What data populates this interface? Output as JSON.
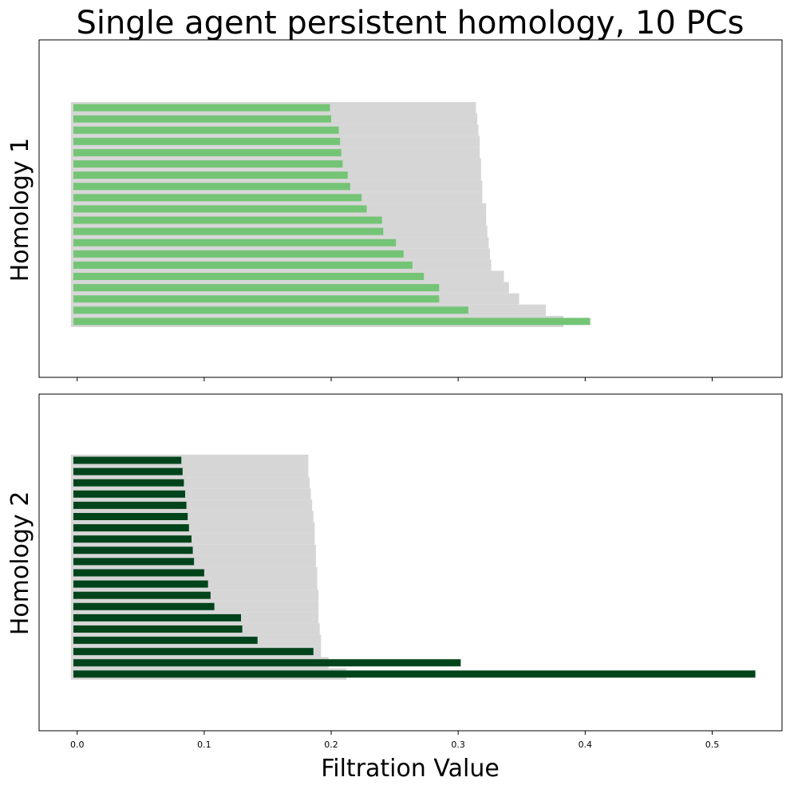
{
  "title": "Single agent persistent homology, 10 PCs",
  "xlabel": "Filtration Value",
  "colors": {
    "background_bar": "#d6d6d6",
    "homology1_bar": "#74c476",
    "homology2_bar": "#00441b",
    "axes": "#000000"
  },
  "chart_data": [
    {
      "type": "bar",
      "orientation": "horizontal",
      "ylabel": "Homology 1",
      "xlim": [
        -0.03,
        0.555
      ],
      "xticks": [
        0.0,
        0.1,
        0.2,
        0.3,
        0.4,
        0.5
      ],
      "xtick_labels_visible": false,
      "series": [
        {
          "role": "background",
          "values": [
            0.314,
            0.315,
            0.316,
            0.317,
            0.317,
            0.318,
            0.318,
            0.319,
            0.319,
            0.322,
            0.322,
            0.323,
            0.324,
            0.325,
            0.326,
            0.336,
            0.34,
            0.348,
            0.369,
            0.383
          ]
        },
        {
          "role": "foreground",
          "values": [
            0.199,
            0.2,
            0.206,
            0.207,
            0.208,
            0.209,
            0.213,
            0.215,
            0.224,
            0.228,
            0.24,
            0.241,
            0.251,
            0.257,
            0.264,
            0.273,
            0.285,
            0.285,
            0.308,
            0.404
          ]
        }
      ]
    },
    {
      "type": "bar",
      "orientation": "horizontal",
      "ylabel": "Homology 2",
      "xlim": [
        -0.03,
        0.555
      ],
      "xticks": [
        0.0,
        0.1,
        0.2,
        0.3,
        0.4,
        0.5
      ],
      "xtick_labels": [
        "0.0",
        "0.1",
        "0.2",
        "0.3",
        "0.4",
        "0.5"
      ],
      "series": [
        {
          "role": "background",
          "values": [
            0.182,
            0.182,
            0.183,
            0.184,
            0.185,
            0.186,
            0.187,
            0.187,
            0.188,
            0.188,
            0.189,
            0.189,
            0.19,
            0.19,
            0.19,
            0.191,
            0.192,
            0.192,
            0.198,
            0.212
          ]
        },
        {
          "role": "foreground",
          "values": [
            0.082,
            0.083,
            0.084,
            0.085,
            0.086,
            0.087,
            0.088,
            0.09,
            0.091,
            0.092,
            0.1,
            0.103,
            0.105,
            0.108,
            0.129,
            0.13,
            0.142,
            0.186,
            0.302,
            0.534
          ]
        }
      ]
    }
  ]
}
